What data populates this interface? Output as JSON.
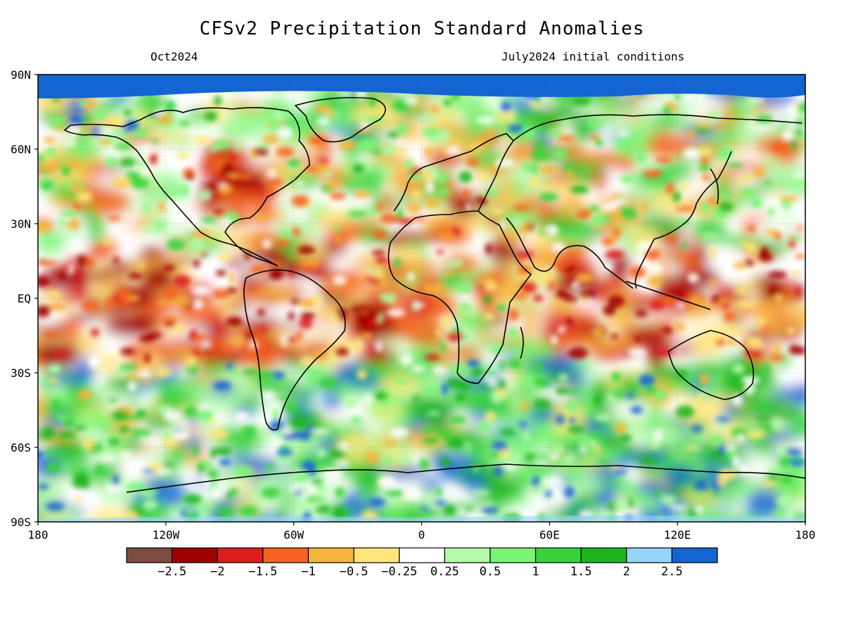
{
  "title": "CFSv2 Precipitation Standard Anomalies",
  "subtitle_left": "Oct2024",
  "subtitle_right": "July2024 initial conditions",
  "map": {
    "lat_labels": [
      "90N",
      "60N",
      "30N",
      "EQ",
      "30S",
      "60S",
      "90S"
    ],
    "lat_values": [
      90,
      60,
      30,
      0,
      -30,
      -60,
      -90
    ],
    "lon_labels": [
      "180",
      "120W",
      "60W",
      "0",
      "60E",
      "120E",
      "180"
    ],
    "lon_values": [
      -180,
      -120,
      -60,
      0,
      60,
      120,
      180
    ],
    "ocean_fill": "#ffffff",
    "land_outline": "#000000",
    "polar_color": "#1464d2"
  },
  "colorbar": {
    "colors": [
      "#7b4c40",
      "#a00000",
      "#dc1e1e",
      "#f5641e",
      "#f5b43c",
      "#ffe678",
      "#ffffff",
      "#b4faaa",
      "#78f573",
      "#37d23c",
      "#1eb41e",
      "#96d2fa",
      "#1464d2"
    ],
    "labels": [
      "−2.5",
      "−2",
      "−1.5",
      "−1",
      "−0.5",
      "−0.25",
      "0.25",
      "0.5",
      "1",
      "1.5",
      "2",
      "2.5"
    ]
  }
}
